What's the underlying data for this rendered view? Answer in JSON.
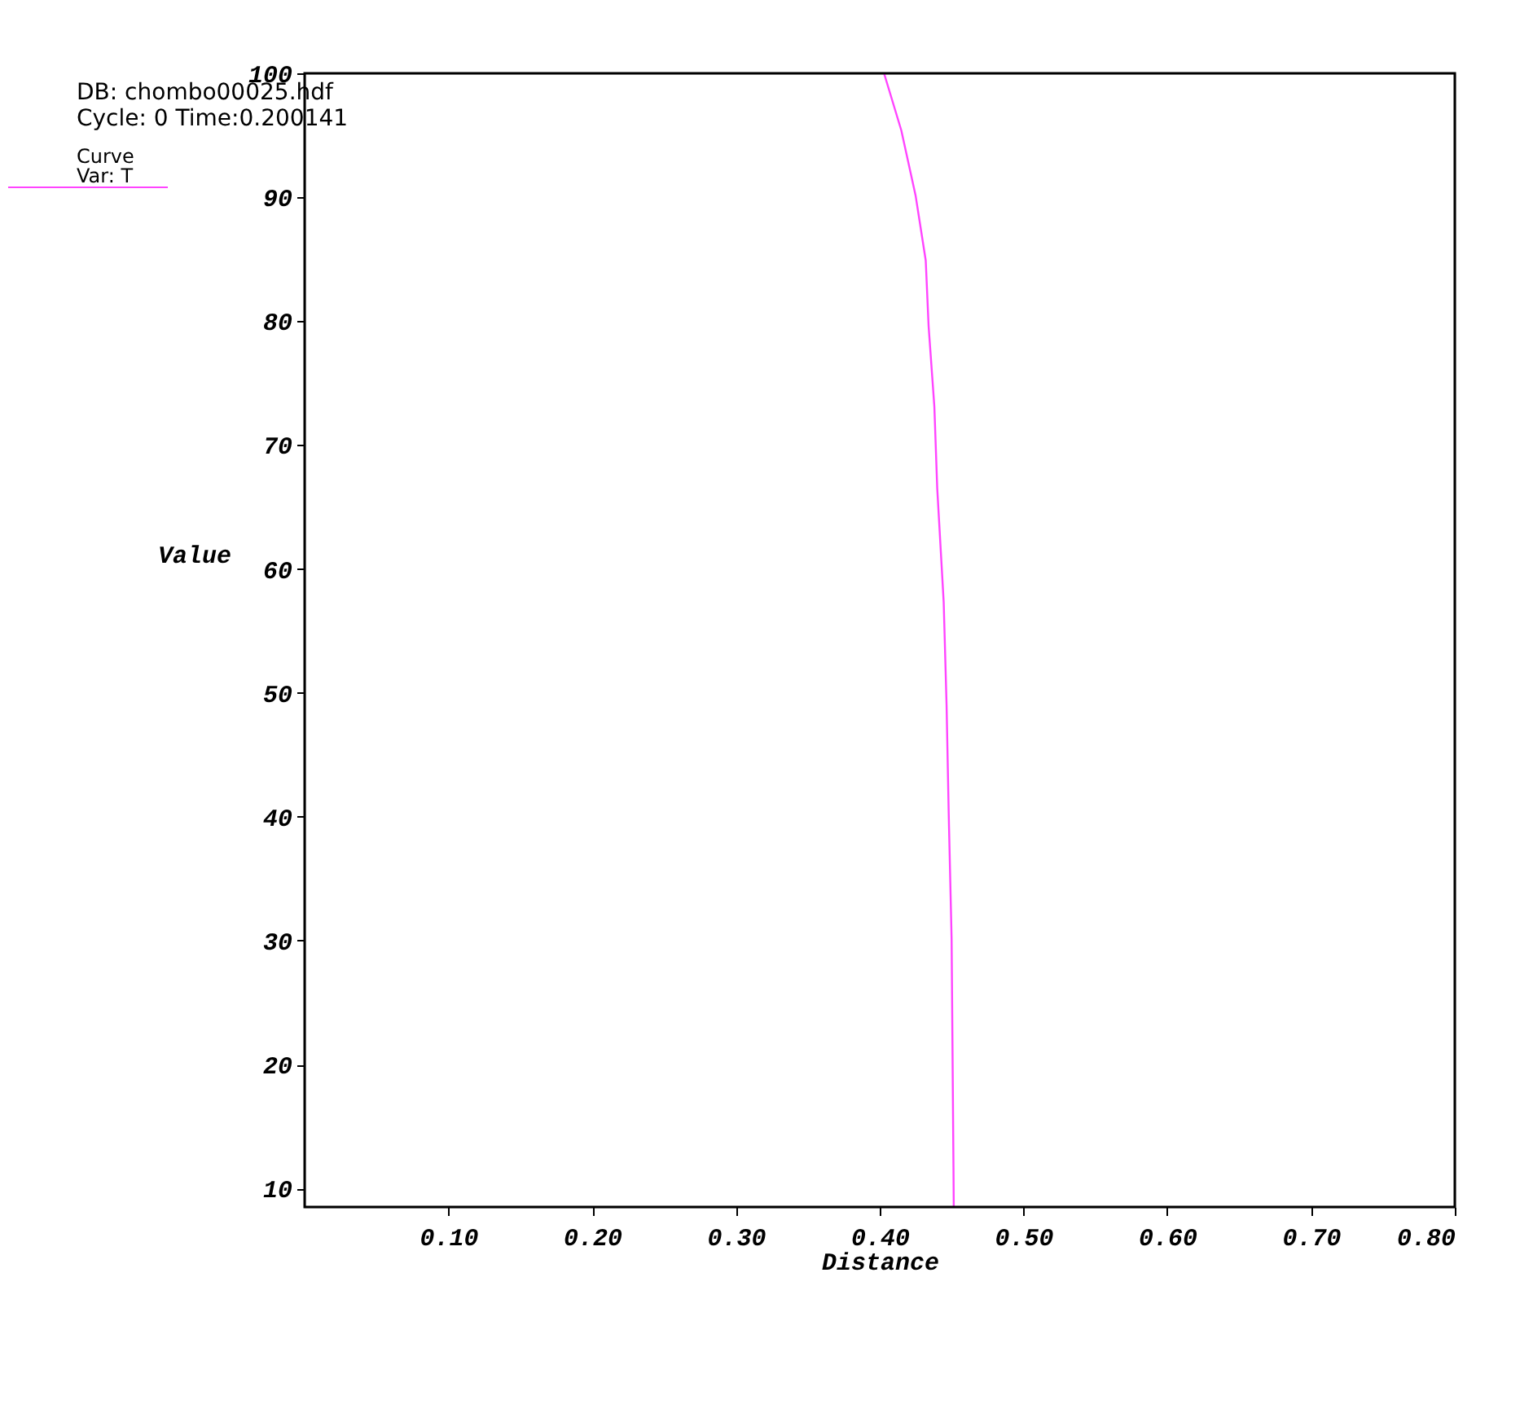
{
  "chart_data": {
    "type": "line",
    "xlabel": "Distance",
    "ylabel": "Value",
    "legend_title": "Curve",
    "legend": "top left",
    "grid": false,
    "marker": "none",
    "line_style": "solid",
    "annotations": [
      "DB: chombo00025.hdf",
      "Cycle: 0      Time:0.200141"
    ],
    "xlim": [
      0,
      0.8
    ],
    "ylim": [
      8.5,
      100
    ],
    "xticks": [
      {
        "value": 0.1,
        "label": "0.10"
      },
      {
        "value": 0.2,
        "label": "0.20"
      },
      {
        "value": 0.3,
        "label": "0.30"
      },
      {
        "value": 0.4,
        "label": "0.40"
      },
      {
        "value": 0.5,
        "label": "0.50"
      },
      {
        "value": 0.6,
        "label": "0.60"
      },
      {
        "value": 0.7,
        "label": "0.70"
      },
      {
        "value": 0.8,
        "label": "0.80"
      }
    ],
    "yticks": [
      10,
      20,
      30,
      40,
      50,
      60,
      70,
      80,
      90,
      100
    ],
    "series": [
      {
        "name": "Var: T",
        "color": "#ff44ff",
        "x": [
          0.403,
          0.415,
          0.425,
          0.432,
          0.434,
          0.438,
          0.44,
          0.4445,
          0.4465,
          0.448,
          0.45,
          0.4513,
          0.4515
        ],
        "values": [
          100,
          95.4,
          90.1,
          84.9,
          79.6,
          73.1,
          66.5,
          57.3,
          49.0,
          40.2,
          30.1,
          11.7,
          8.5
        ]
      }
    ]
  }
}
